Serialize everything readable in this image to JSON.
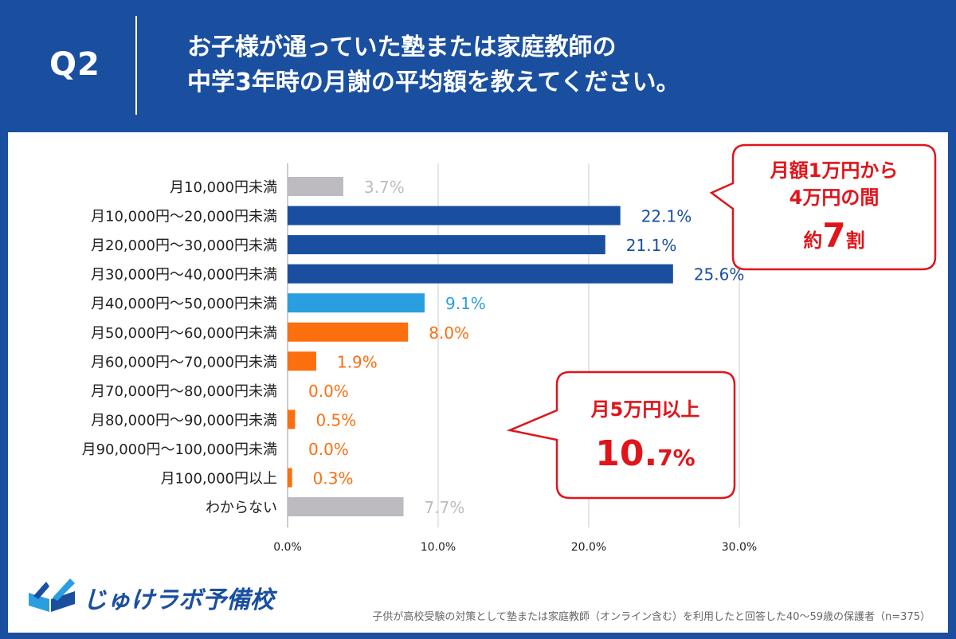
{
  "header": {
    "q_label": "Q2",
    "question_line1": "お子様が通っていた塾または家庭教師の",
    "question_line2": "中学3年時の月謝の平均額を教えてください。"
  },
  "colors": {
    "background": "#1a4fa0",
    "gray": "#bdbbbf",
    "dark_blue": "#1a4fa0",
    "light_blue": "#2a9fdf",
    "orange": "#fb6f0f",
    "callout_red": "#e0151b"
  },
  "chart_data": {
    "type": "bar",
    "orientation": "horizontal",
    "categories": [
      "月10,000円未満",
      "月10,000円～20,000円未満",
      "月20,000円～30,000円未満",
      "月30,000円～40,000円未満",
      "月40,000円～50,000円未満",
      "月50,000円～60,000円未満",
      "月60,000円～70,000円未満",
      "月70,000円～80,000円未満",
      "月80,000円～90,000円未満",
      "月90,000円～100,000円未満",
      "月100,000円以上",
      "わからない"
    ],
    "values": [
      3.7,
      22.1,
      21.1,
      25.6,
      9.1,
      8.0,
      1.9,
      0.0,
      0.5,
      0.0,
      0.3,
      7.7
    ],
    "value_labels": [
      "3.7%",
      "22.1%",
      "21.1%",
      "25.6%",
      "9.1%",
      "8.0%",
      "1.9%",
      "0.0%",
      "0.5%",
      "0.0%",
      "0.3%",
      "7.7%"
    ],
    "bar_colors": [
      "gray",
      "dark_blue",
      "dark_blue",
      "dark_blue",
      "light_blue",
      "orange",
      "orange",
      "orange",
      "orange",
      "orange",
      "orange",
      "gray"
    ],
    "x_ticks": [
      0,
      10,
      20,
      30
    ],
    "x_tick_labels": [
      "0.0%",
      "10.0%",
      "20.0%",
      "30.0%"
    ],
    "xlim": [
      0,
      30
    ],
    "grid": "vertical",
    "annotations": [
      {
        "line1": "月額1万円から",
        "line2": "4万円の間",
        "prefix": "約",
        "value": "7",
        "suffix": "割"
      },
      {
        "line1": "月5万円以上",
        "value_main": "10.",
        "value_small": "7%"
      }
    ]
  },
  "footer": {
    "brand": "じゅけラボ予備校",
    "note": "子供が高校受験の対策として塾または家庭教師（オンライン含む）を利用したと回答した40～59歳の保護者（n=375）"
  }
}
